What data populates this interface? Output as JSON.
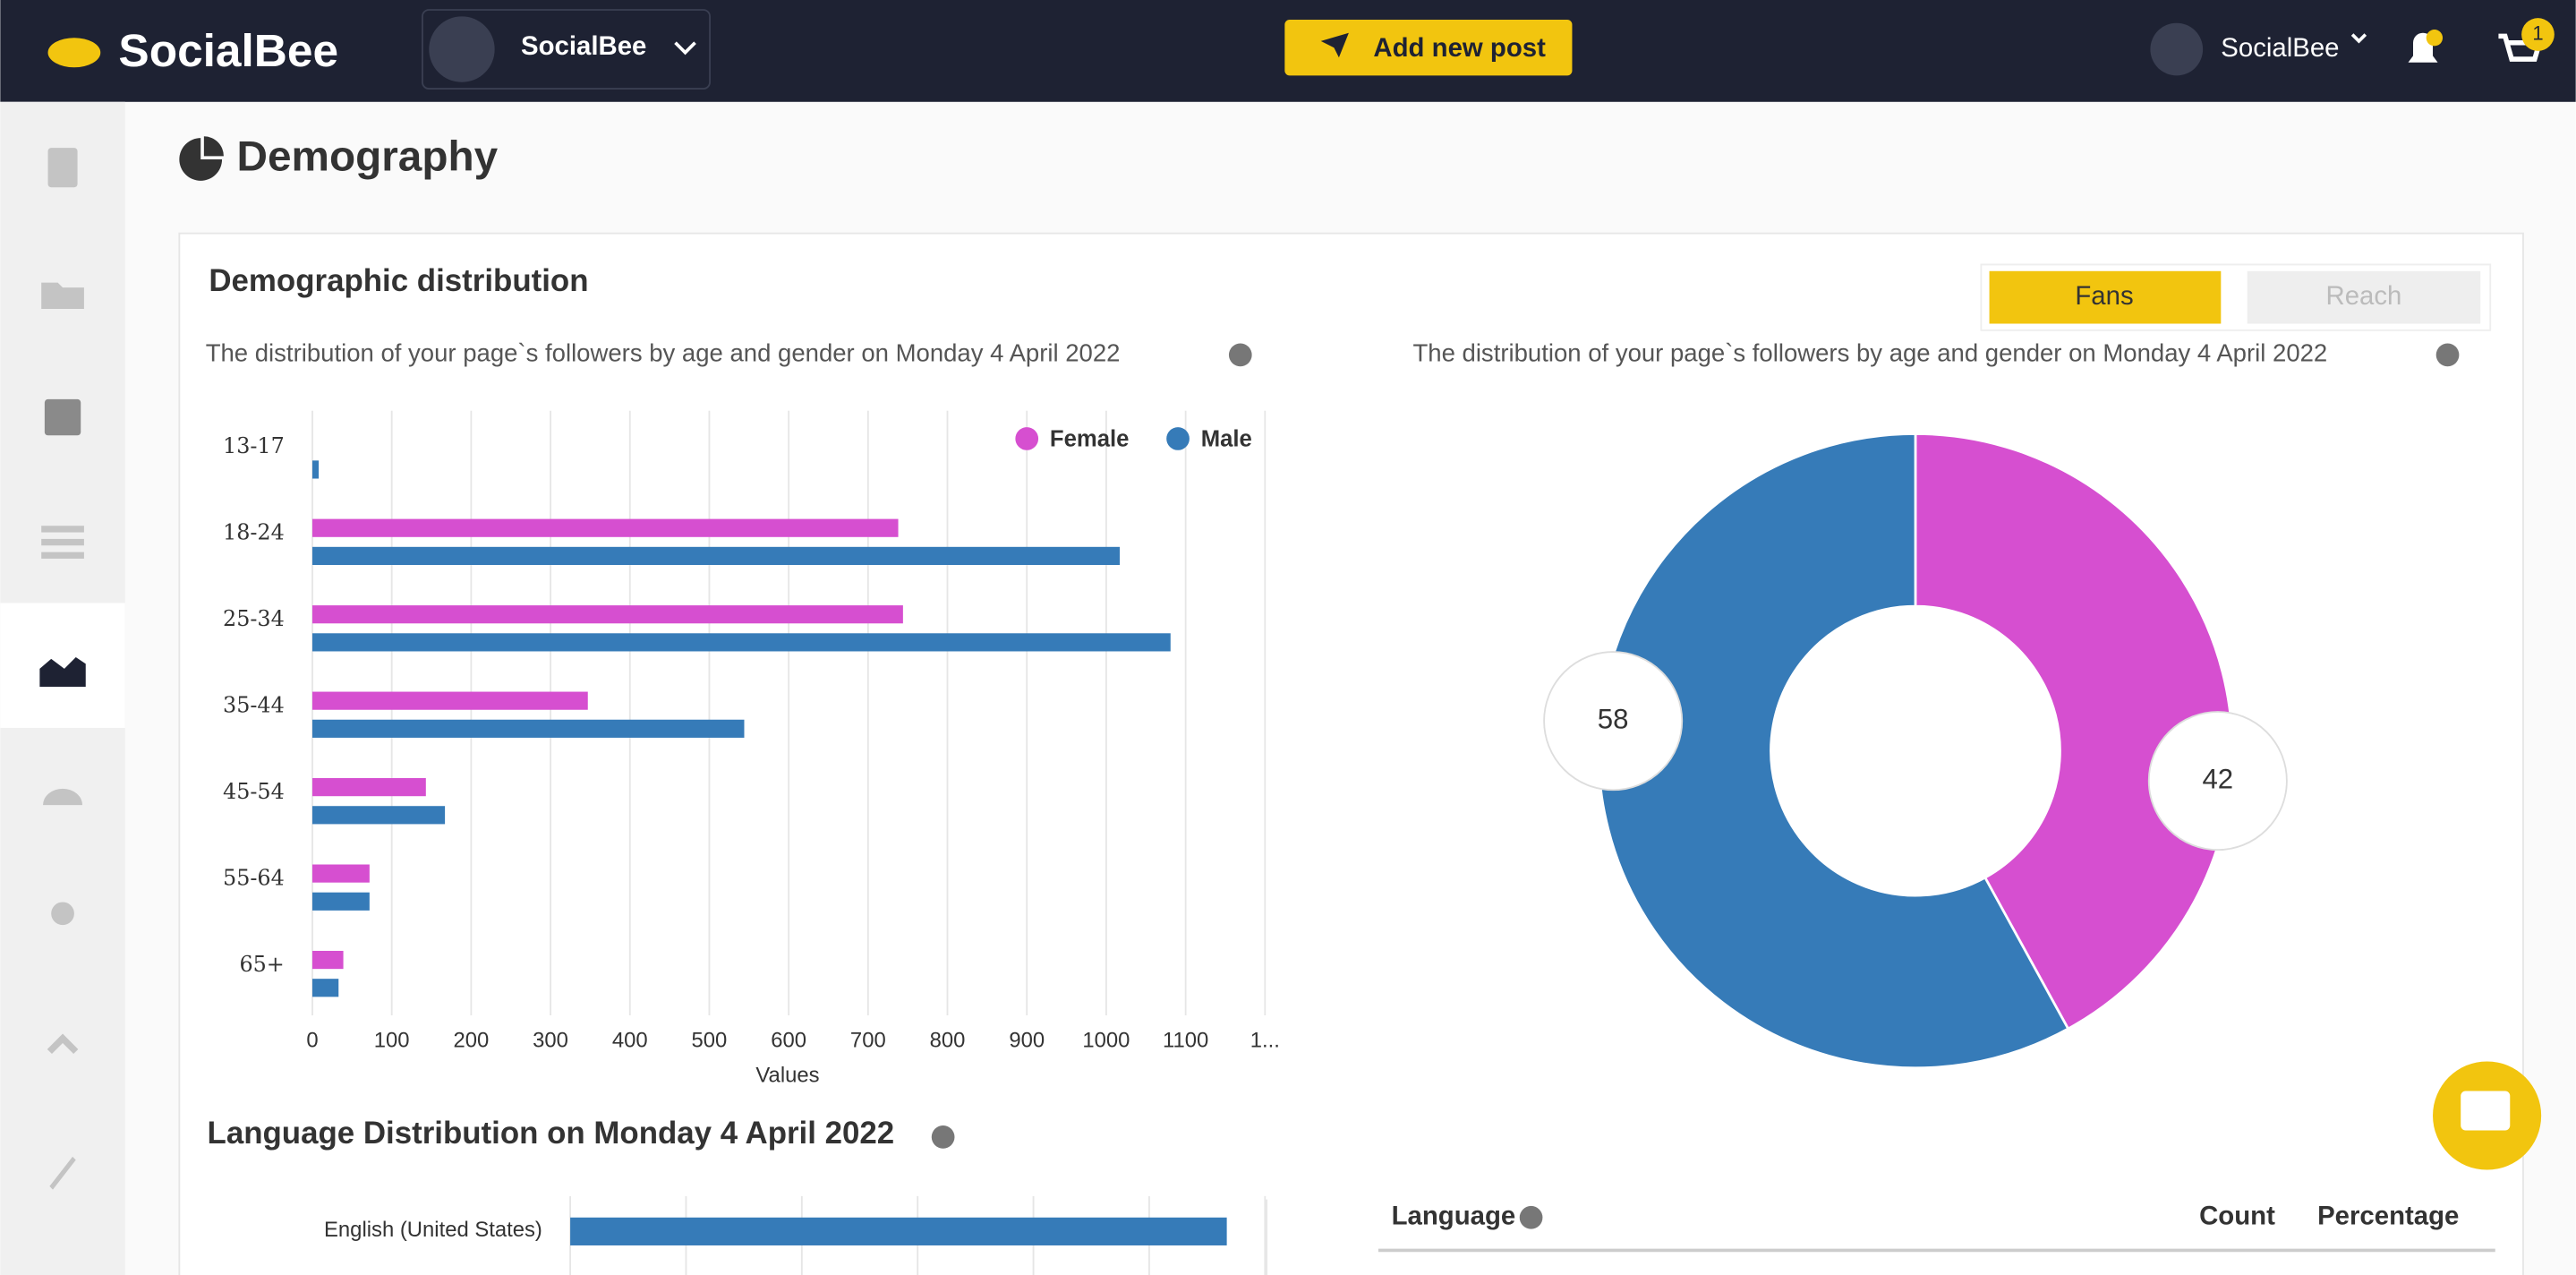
{
  "header": {
    "brand": "SocialBee",
    "account": "SocialBee",
    "add_post": "Add new post",
    "user": "SocialBee",
    "cart_badge": "1"
  },
  "page_title": "Demography",
  "card_title": "Demographic distribution",
  "toggle": {
    "fans": "Fans",
    "reach": "Reach"
  },
  "chart_data": [
    {
      "type": "hbar",
      "subtitle": "The distribution of your page`s followers by age and gender on Monday 4 April 2022",
      "x_label": "Values",
      "categories": [
        "13-17",
        "18-24",
        "25-34",
        "35-44",
        "45-54",
        "55-64",
        "65+"
      ],
      "series": [
        {
          "name": "Female",
          "color": "#d64fd0",
          "values": [
            0,
            738,
            744,
            347,
            143,
            72,
            39
          ]
        },
        {
          "name": "Male",
          "color": "#367bb8",
          "values": [
            8,
            1017,
            1081,
            544,
            167,
            72,
            33
          ]
        }
      ],
      "xlim": [
        0,
        1200
      ],
      "xticks": [
        0,
        100,
        200,
        300,
        400,
        500,
        600,
        700,
        800,
        900,
        1000,
        1100,
        {
          "value": 1200,
          "label": "1..."
        }
      ],
      "grid": true
    },
    {
      "type": "donut",
      "subtitle": "The distribution of your page`s followers by age and gender on Monday 4 April 2022",
      "categories": [
        "Female",
        "Male"
      ],
      "values": [
        42,
        58
      ],
      "colors": [
        "#d64fd0",
        "#367bb8"
      ]
    },
    {
      "type": "hbar",
      "title": "Language Distribution on Monday 4 April 2022",
      "categories": [
        "English (United States)"
      ],
      "series": [
        {
          "color": "#367bb8",
          "values": [
            5.67
          ]
        }
      ],
      "xlim": [
        0,
        6
      ]
    }
  ],
  "language_table": {
    "columns": [
      "Language",
      "Count",
      "Percentage"
    ]
  }
}
